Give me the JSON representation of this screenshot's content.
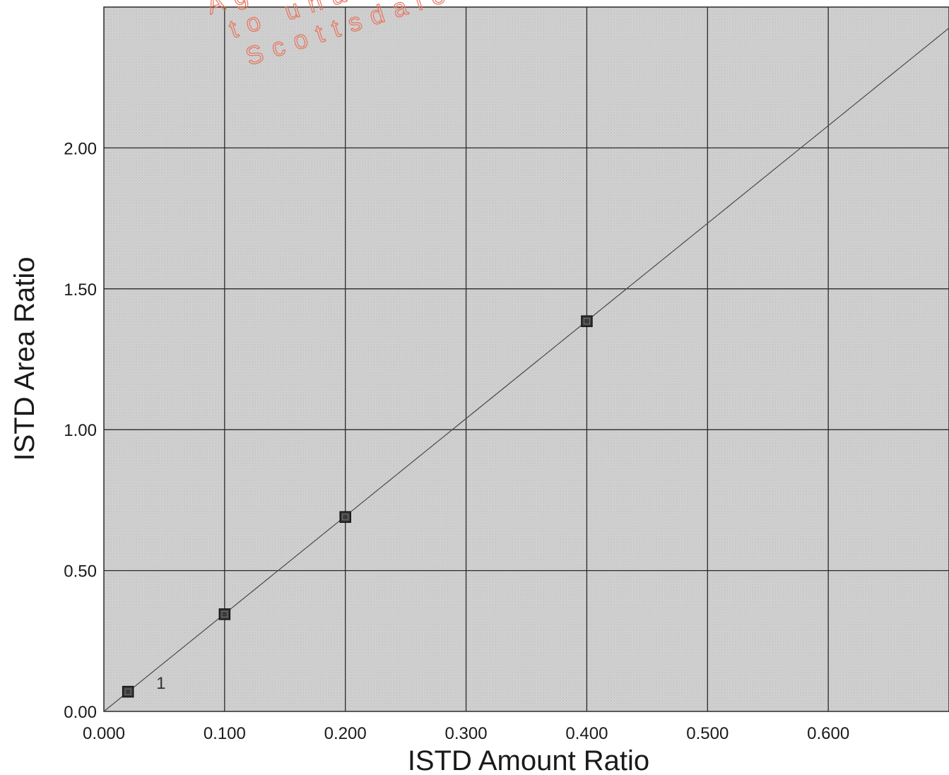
{
  "chart_data": {
    "type": "scatter",
    "title": "",
    "xlabel": "ISTD Amount Ratio",
    "ylabel": "ISTD Area Ratio",
    "xlim": [
      0.0,
      0.7
    ],
    "ylim": [
      0.0,
      2.5
    ],
    "x_ticks": [
      0.0,
      0.1,
      0.2,
      0.3,
      0.4,
      0.5,
      0.6
    ],
    "x_tick_labels": [
      "0.000",
      "0.100",
      "0.200",
      "0.300",
      "0.400",
      "0.500",
      "0.600"
    ],
    "y_ticks": [
      0.0,
      0.5,
      1.0,
      1.5,
      2.0
    ],
    "y_tick_labels": [
      "0.00",
      "0.50",
      "1.00",
      "1.50",
      "2.00"
    ],
    "grid": true,
    "legend": "none",
    "series": [
      {
        "points": [
          {
            "x": 0.02,
            "y": 0.07,
            "label": "1"
          },
          {
            "x": 0.1,
            "y": 0.345,
            "label": ""
          },
          {
            "x": 0.2,
            "y": 0.69,
            "label": ""
          },
          {
            "x": 0.4,
            "y": 1.385,
            "label": ""
          }
        ]
      }
    ],
    "fit_line": {
      "slope": 3.465,
      "intercept": 0.0,
      "x_range": [
        0.0,
        0.7
      ]
    },
    "colors": {
      "plot_background": "#cdcdcd",
      "grid": "#2a2a2a",
      "fit_line": "#4a4a4a",
      "marker_fill": "#3a3a3a",
      "marker_edge": "#111111"
    }
  },
  "watermark": {
    "lines": [
      "Age n",
      "to unau",
      "Scottsdale"
    ],
    "color": "#e8735c"
  }
}
